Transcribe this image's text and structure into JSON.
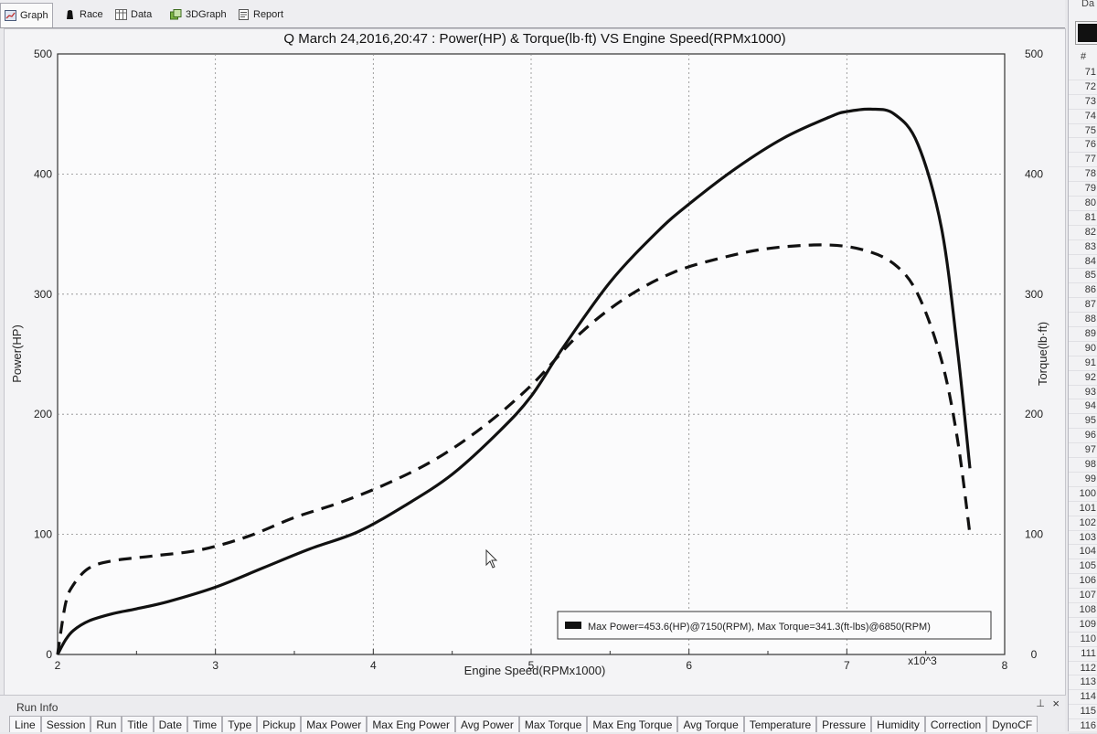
{
  "tabs": [
    {
      "label": "Graph",
      "icon": "graph-icon"
    },
    {
      "label": "Race",
      "icon": "race-icon"
    },
    {
      "label": "Data",
      "icon": "data-icon"
    },
    {
      "label": "3DGraph",
      "icon": "3dgraph-icon"
    },
    {
      "label": "Report",
      "icon": "report-icon"
    }
  ],
  "graph": {
    "title": "Q March 24,2016,20:47  : Power(HP) & Torque(lb·ft) VS Engine Speed(RPMx1000)",
    "legend": "Max Power=453.6(HP)@7150(RPM), Max Torque=341.3(ft-lbs)@6850(RPM)",
    "x_multiplier": "x10^3"
  },
  "chart_data": {
    "type": "line",
    "title": "Q March 24,2016,20:47  : Power(HP) & Torque(lb·ft) VS Engine Speed(RPMx1000)",
    "xlabel": "Engine Speed(RPMx1000)",
    "ylabel": "Power(HP)",
    "y2label": "Torque(lb·ft)",
    "xlim": [
      2,
      8
    ],
    "ylim": [
      0,
      500
    ],
    "y2lim": [
      0,
      500
    ],
    "x_ticks": [
      "2",
      "3",
      "4",
      "5",
      "6",
      "7",
      "8"
    ],
    "y_ticks": [
      "0",
      "100",
      "200",
      "300",
      "400",
      "500"
    ],
    "y2_ticks": [
      "0",
      "100",
      "200",
      "300",
      "400",
      "500"
    ],
    "grid": true,
    "legend_position": "bottom-right",
    "series": [
      {
        "name": "Power",
        "style": "solid",
        "axis": "left",
        "x": [
          2.0,
          2.05,
          2.1,
          2.2,
          2.35,
          2.5,
          2.7,
          3.0,
          3.3,
          3.6,
          3.9,
          4.2,
          4.5,
          4.8,
          5.0,
          5.2,
          5.5,
          5.8,
          6.0,
          6.3,
          6.6,
          6.9,
          7.0,
          7.15,
          7.3,
          7.45,
          7.6,
          7.7,
          7.78
        ],
        "values": [
          0,
          12,
          20,
          28,
          34,
          38,
          44,
          56,
          72,
          88,
          102,
          124,
          150,
          186,
          215,
          255,
          310,
          352,
          375,
          405,
          430,
          448,
          452,
          454,
          450,
          425,
          355,
          255,
          155
        ]
      },
      {
        "name": "Torque",
        "style": "dashed",
        "axis": "right",
        "x": [
          2.0,
          2.05,
          2.1,
          2.2,
          2.35,
          2.6,
          2.9,
          3.2,
          3.5,
          3.8,
          4.1,
          4.4,
          4.7,
          5.0,
          5.3,
          5.6,
          5.9,
          6.2,
          6.5,
          6.85,
          7.1,
          7.3,
          7.45,
          7.6,
          7.7,
          7.78
        ],
        "values": [
          0,
          42,
          58,
          72,
          78,
          82,
          87,
          98,
          114,
          127,
          143,
          163,
          190,
          224,
          266,
          297,
          318,
          330,
          338,
          341,
          337,
          325,
          300,
          245,
          180,
          100
        ]
      }
    ]
  },
  "right_panel": {
    "header": "Da",
    "hash": "#",
    "rows": [
      "71",
      "72",
      "73",
      "74",
      "75",
      "76",
      "77",
      "78",
      "79",
      "80",
      "81",
      "82",
      "83",
      "84",
      "85",
      "86",
      "87",
      "88",
      "89",
      "90",
      "91",
      "92",
      "93",
      "94",
      "95",
      "96",
      "97",
      "98",
      "99",
      "100",
      "101",
      "102",
      "103",
      "104",
      "105",
      "106",
      "107",
      "108",
      "109",
      "110",
      "111",
      "112",
      "113",
      "114",
      "115",
      "116"
    ]
  },
  "run_info": {
    "title": "Run Info",
    "pin": "⊥",
    "close": "×",
    "columns": [
      "Line",
      "Session",
      "Run",
      "Title",
      "Date",
      "Time",
      "Type",
      "Pickup",
      "Max Power",
      "Max Eng Power",
      "Avg Power",
      "Max Torque",
      "Max Eng Torque",
      "Avg Torque",
      "Temperature",
      "Pressure",
      "Humidity",
      "Correction",
      "DynoCF"
    ]
  }
}
